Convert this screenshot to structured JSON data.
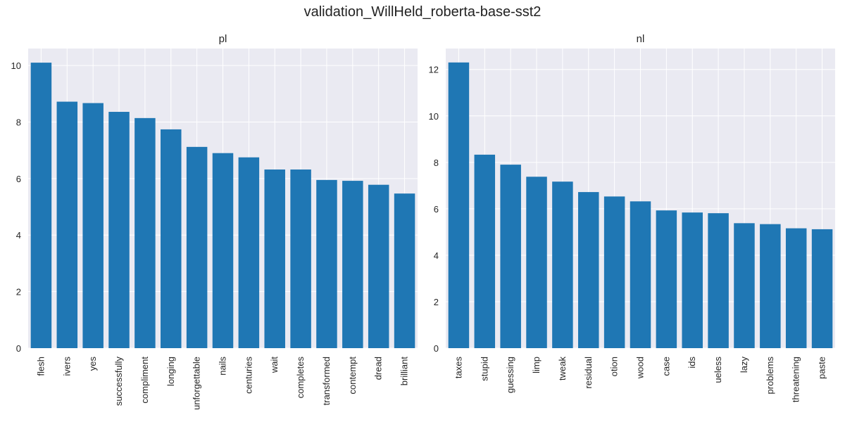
{
  "figure": {
    "title": "validation_WillHeld_roberta-base-sst2"
  },
  "colors": {
    "bar": "#1f77b4",
    "plot_bg": "#eaeaf2",
    "grid": "#ffffff",
    "text": "#262626"
  },
  "chart_data": [
    {
      "type": "bar",
      "title": "pl",
      "xlabel": "",
      "ylabel": "",
      "ylim": [
        0,
        10.6
      ],
      "yticks": [
        0,
        2,
        4,
        6,
        8,
        10
      ],
      "grid": true,
      "categories": [
        "flesh",
        "ivers",
        "yes",
        "successfully",
        "compliment",
        "longing",
        "unforgettable",
        "nails",
        "centuries",
        "wait",
        "completes",
        "transformed",
        "contempt",
        "dread",
        "brilliant"
      ],
      "values": [
        10.1,
        8.72,
        8.67,
        8.36,
        8.14,
        7.74,
        7.12,
        6.9,
        6.75,
        6.32,
        6.32,
        5.95,
        5.92,
        5.78,
        5.47
      ]
    },
    {
      "type": "bar",
      "title": "nl",
      "xlabel": "",
      "ylabel": "",
      "ylim": [
        0,
        12.9
      ],
      "yticks": [
        0,
        2,
        4,
        6,
        8,
        10,
        12
      ],
      "grid": true,
      "categories": [
        "taxes",
        "stupid",
        "guessing",
        "limp",
        "tweak",
        "residual",
        "otion",
        "wood",
        "case",
        "ids",
        "ueless",
        "lazy",
        "problems",
        "threatening",
        "paste"
      ],
      "values": [
        12.3,
        8.33,
        7.9,
        7.38,
        7.17,
        6.72,
        6.53,
        6.32,
        5.93,
        5.84,
        5.81,
        5.38,
        5.34,
        5.16,
        5.12
      ]
    }
  ]
}
